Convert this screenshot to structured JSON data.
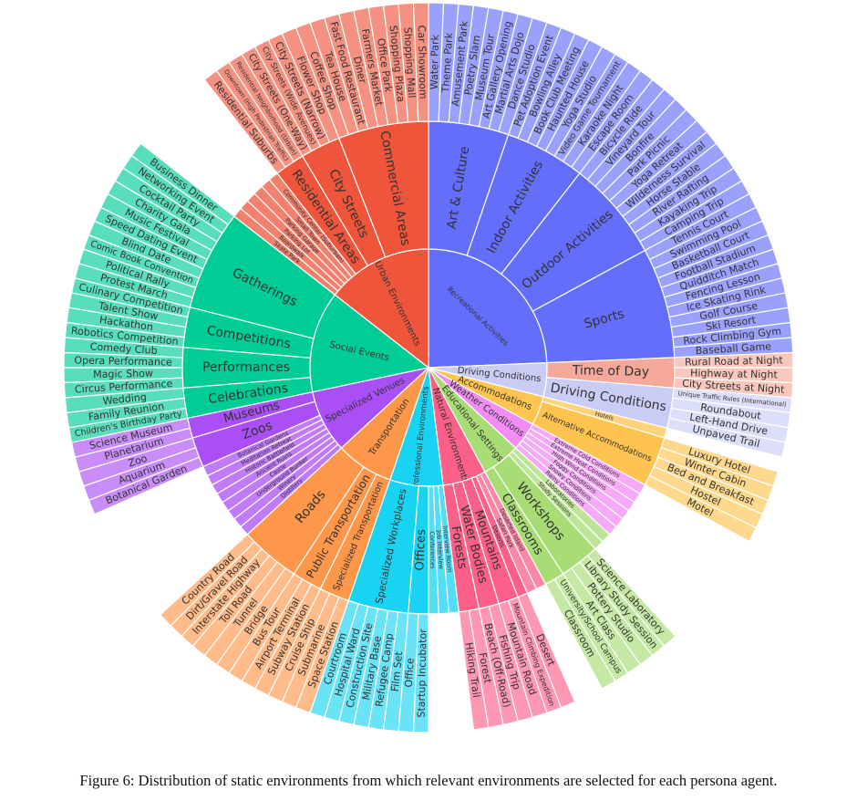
{
  "caption": "Figure 6: Distribution of static environments from which relevant environments are selected for each persona agent.",
  "chart_data": {
    "type": "sunburst",
    "title": "",
    "value_rule": "each leaf environment counts 1; parents sum their children",
    "root": [
      {
        "name": "Recreational Activities",
        "color": "#636efa",
        "children": [
          {
            "name": "Art & Culture",
            "children": [
              "Water Park",
              "Theme Park",
              "Amusement Park",
              "Poetry Slam",
              "Museum Tour",
              "Art Gallery Opening",
              "Martial Arts Dojo",
              "Dance Studio"
            ]
          },
          {
            "name": "Indoor Activities",
            "children": [
              "Pet Adoption Event",
              "Bowling Alley",
              "Book Club Meeting",
              "Haunted House",
              "Yoga Studio",
              "Video Game Tournament",
              "Karaoke Night",
              "Escape Room"
            ]
          },
          {
            "name": "Outdoor Activities",
            "children": [
              "Bicycle Ride",
              "Vineyard Tour",
              "Bonfire",
              "Park Picnic",
              "Yoga Retreat",
              "Wilderness Survival",
              "Horse Stable",
              "River Rafting",
              "Kayaking Trip",
              "Camping Trip"
            ]
          },
          {
            "name": "Sports",
            "children": [
              "Tennis Court",
              "Swimming Pool",
              "Basketball Court",
              "Football Stadium",
              "Quidditch Match",
              "Fencing Lesson",
              "Ice Skating Rink",
              "Golf Course",
              "Ski Resort",
              "Rock Climbing Gym",
              "Baseball Game"
            ]
          }
        ]
      },
      {
        "name": "Driving Conditions",
        "color": "#c9cdf5",
        "children": [
          {
            "name": "Time of Day",
            "color": "#f4a99a",
            "children": [
              "Rural Road at Night",
              "Highway at Night",
              "City Streets at Night"
            ]
          },
          {
            "name": "Driving Conditions",
            "children": [
              "Unique Traffic Rules (International)",
              "Roundabout",
              "Left-Hand Drive",
              "Unpaved Trail"
            ]
          }
        ]
      },
      {
        "name": "Accommodations",
        "color": "#fec44f",
        "children": [
          {
            "name": "Hotels",
            "children": []
          },
          {
            "name": "Alternative Accommodations",
            "children": [
              "Luxury Hotel",
              "Winter Cabin",
              "Bed and Breakfast",
              "Hostel",
              "Motel"
            ]
          }
        ]
      },
      {
        "name": "Weather Conditions",
        "color": "#f38cf5",
        "children": [
          {
            "name": "Extreme Cold Conditions",
            "children": []
          },
          {
            "name": "Extreme Heat Conditions",
            "children": []
          },
          {
            "name": "High Wind Conditions",
            "children": []
          },
          {
            "name": "Foggy Conditions",
            "children": []
          },
          {
            "name": "Snowy Conditions",
            "children": []
          },
          {
            "name": "Rainy Conditions",
            "children": []
          }
        ]
      },
      {
        "name": "Educational Settings",
        "color": "#a8dc74",
        "children": [
          {
            "name": "Laboratories",
            "children": []
          },
          {
            "name": "Study Sessions",
            "children": []
          },
          {
            "name": "Workshops",
            "children": [
              "Science Laboratory",
              "Library Study Session",
              "Pottery Studio",
              "Art Class"
            ]
          },
          {
            "name": "Classrooms",
            "children": [
              "University/School Campus",
              "Classroom"
            ]
          }
        ]
      },
      {
        "name": "Natural Environments",
        "color": "#fc5f88",
        "children": [
          {
            "name": "Deserted Island",
            "children": []
          },
          {
            "name": "Safari Park",
            "children": []
          },
          {
            "name": "Deserts",
            "children": [
              "Desert"
            ]
          },
          {
            "name": "Mountains",
            "children": [
              "Mountain Climbing Expedition",
              "Mountain Road"
            ]
          },
          {
            "name": "Water Bodies",
            "children": [
              "Fishing Trip",
              "Beach (Off-Road)"
            ]
          },
          {
            "name": "Forests",
            "children": [
              "Forest",
              "Hiking Trail"
            ]
          }
        ]
      },
      {
        "name": "Professional Environments",
        "color": "#19d3f3",
        "children": [
          {
            "name": "Interview Room",
            "children": []
          },
          {
            "name": "Job Interview",
            "children": []
          },
          {
            "name": "Conferences",
            "children": []
          },
          {
            "name": "Offices",
            "children": [
              "Startup Incubator",
              "Office"
            ]
          },
          {
            "name": "Specialized Workplaces",
            "children": [
              "Film Set",
              "Refugee Camp",
              "Military Base",
              "Construction Site",
              "Hospital Ward",
              "Courtroom"
            ]
          }
        ]
      },
      {
        "name": "Transportation",
        "color": "#ff974a",
        "children": [
          {
            "name": "Specialized Transportation",
            "children": [
              "Space Station",
              "Submarine",
              "Cruise Ship"
            ]
          },
          {
            "name": "Public Transportation",
            "children": [
              "Subway Station",
              "Airport Terminal",
              "Bus Tour"
            ]
          },
          {
            "name": "Roads",
            "children": [
              "Bridge",
              "Tunnel",
              "Toll Road",
              "Interstate Highway",
              "Dirt/Gravel Road",
              "Country Road"
            ]
          }
        ]
      },
      {
        "name": "Specialized Venues",
        "color": "#aa4ff5",
        "children": [
          {
            "name": "Distillery",
            "children": []
          },
          {
            "name": "Winery",
            "children": []
          },
          {
            "name": "Underground Bunker",
            "children": []
          },
          {
            "name": "Castle",
            "children": []
          },
          {
            "name": "Ancient Ruins",
            "children": []
          },
          {
            "name": "Historic Battlefield",
            "children": []
          },
          {
            "name": "Meditation Retreat",
            "children": []
          },
          {
            "name": "Botanical Gardens",
            "children": []
          },
          {
            "name": "Zoos",
            "children": [
              "Botanical Garden",
              "Aquarium",
              "Zoo"
            ]
          },
          {
            "name": "Museums",
            "children": [
              "Planetarium",
              "Science Museum"
            ]
          }
        ]
      },
      {
        "name": "Social Events",
        "color": "#00cc96",
        "children": [
          {
            "name": "Celebrations",
            "children": [
              "Children's Birthday Party",
              "Family Reunion",
              "Wedding"
            ]
          },
          {
            "name": "Performances",
            "children": [
              "Circus Performance",
              "Magic Show",
              "Opera Performance",
              "Comedy Club"
            ]
          },
          {
            "name": "Competitions",
            "children": [
              "Robotics Competition",
              "Hackathon",
              "Talent Show",
              "Culinary Competition"
            ]
          },
          {
            "name": "Gatherings",
            "children": [
              "Protest March",
              "Political Rally",
              "Comic Book Convention",
              "Blind Date",
              "Speed Dating Event",
              "Music Festival",
              "Charity Gala",
              "Cocktail Party",
              "Networking Event",
              "Business Dinner"
            ]
          }
        ]
      },
      {
        "name": "Urban Environments",
        "color": "#ef553b",
        "children": [
          {
            "name": "Skate Park",
            "children": []
          },
          {
            "name": "Boardwalk",
            "children": []
          },
          {
            "name": "Parking Lot",
            "children": []
          },
          {
            "name": "Parking Garage",
            "children": []
          },
          {
            "name": "Small Town",
            "children": []
          },
          {
            "name": "Community Center (Suburban)",
            "children": []
          },
          {
            "name": "Residential Areas",
            "children": [
              "Residential Suburbs",
              "Downtown (High Pedestrian Traffic)",
              "Residential Neighborhood (Urban)"
            ]
          },
          {
            "name": "City Streets",
            "children": [
              "City Streets (One-Way)",
              "City Streets (Wide Avenues)",
              "City Streets (Narrow)",
              "Flower Shop"
            ]
          },
          {
            "name": "Commercial Areas",
            "children": [
              "Coffee Shop",
              "Tea House",
              "Fast Food Restaurant",
              "Diner",
              "Farmers Market",
              "Office Park",
              "Shopping Plaza",
              "Shopping Mall",
              "Car Showroom"
            ]
          }
        ]
      }
    ]
  }
}
